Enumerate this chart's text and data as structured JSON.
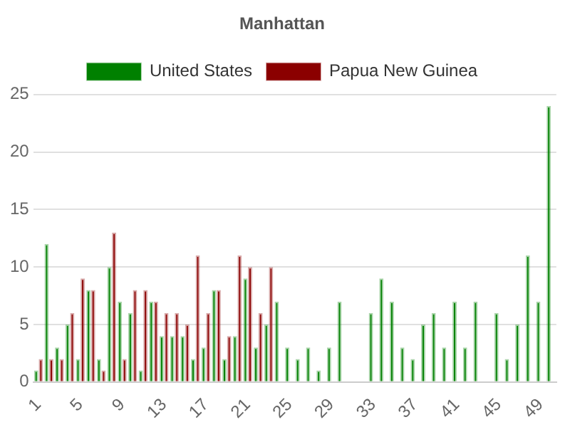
{
  "chart_data": {
    "type": "bar",
    "title": "Manhattan",
    "categories": [
      "1",
      null,
      null,
      null,
      "5",
      null,
      null,
      null,
      "9",
      null,
      null,
      null,
      "13",
      null,
      null,
      null,
      "17",
      null,
      null,
      null,
      "21",
      null,
      null,
      null,
      "25",
      null,
      null,
      null,
      "29",
      null,
      null,
      null,
      "33",
      null,
      null,
      null,
      "37",
      null,
      null,
      null,
      "41",
      null,
      null,
      null,
      "45",
      null,
      null,
      null,
      "49",
      null
    ],
    "series": [
      {
        "name": "United States",
        "color": "#008000",
        "values": [
          1,
          12,
          3,
          5,
          2,
          8,
          2,
          10,
          7,
          6,
          1,
          7,
          4,
          4,
          4,
          2,
          3,
          8,
          2,
          4,
          9,
          3,
          5,
          7,
          3,
          2,
          3,
          1,
          3,
          7,
          null,
          null,
          6,
          9,
          7,
          3,
          2,
          5,
          6,
          3,
          7,
          3,
          7,
          null,
          6,
          2,
          5,
          11,
          7,
          24
        ]
      },
      {
        "name": "Papua New Guinea",
        "color": "#8b0000",
        "values": [
          2,
          2,
          2,
          6,
          9,
          8,
          1,
          13,
          2,
          8,
          8,
          7,
          6,
          6,
          5,
          11,
          6,
          8,
          4,
          11,
          10,
          6,
          10,
          null,
          null,
          null,
          null,
          null,
          null,
          null,
          null,
          null,
          null,
          null,
          null,
          null,
          null,
          null,
          null,
          null,
          null,
          null,
          null,
          null,
          null,
          null,
          null,
          null,
          null,
          null
        ]
      }
    ],
    "ylim": [
      0,
      25
    ],
    "yticks": [
      0,
      5,
      10,
      15,
      20,
      25
    ],
    "grid": "y",
    "legend": "top"
  }
}
